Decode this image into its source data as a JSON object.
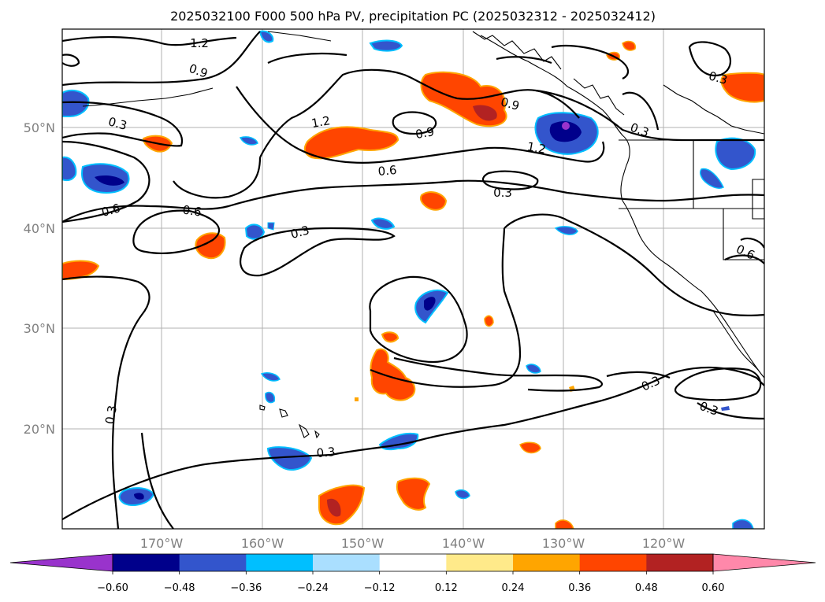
{
  "title": "2025032100 F000 500 hPa PV, precipitation PC (2025032312 - 2025032412)",
  "map": {
    "lat_labels": [
      "50°N",
      "40°N",
      "30°N",
      "20°N"
    ],
    "lon_labels": [
      "170°W",
      "160°W",
      "150°W",
      "140°W",
      "130°W",
      "120°W"
    ],
    "contour_labels": [
      "1.2",
      "0.9",
      "0.3",
      "1.2",
      "0.9",
      "0.9",
      "1.2",
      "0.6",
      "0.3",
      "0.6",
      "0.6",
      "0.3",
      "0.3",
      "0.6",
      "0.3",
      "0.3",
      "0.3",
      "0.3",
      "0.3"
    ]
  },
  "colorbar": {
    "ticks": [
      "−0.60",
      "−0.48",
      "−0.36",
      "−0.24",
      "−0.12",
      "0.12",
      "0.24",
      "0.36",
      "0.48",
      "0.60"
    ],
    "colors": [
      "#9933cc",
      "#00008b",
      "#3355cc",
      "#00bfff",
      "#aadfff",
      "#ffffff",
      "#ffea8a",
      "#ffa500",
      "#ff4500",
      "#b22222",
      "#ff88aa"
    ]
  }
}
